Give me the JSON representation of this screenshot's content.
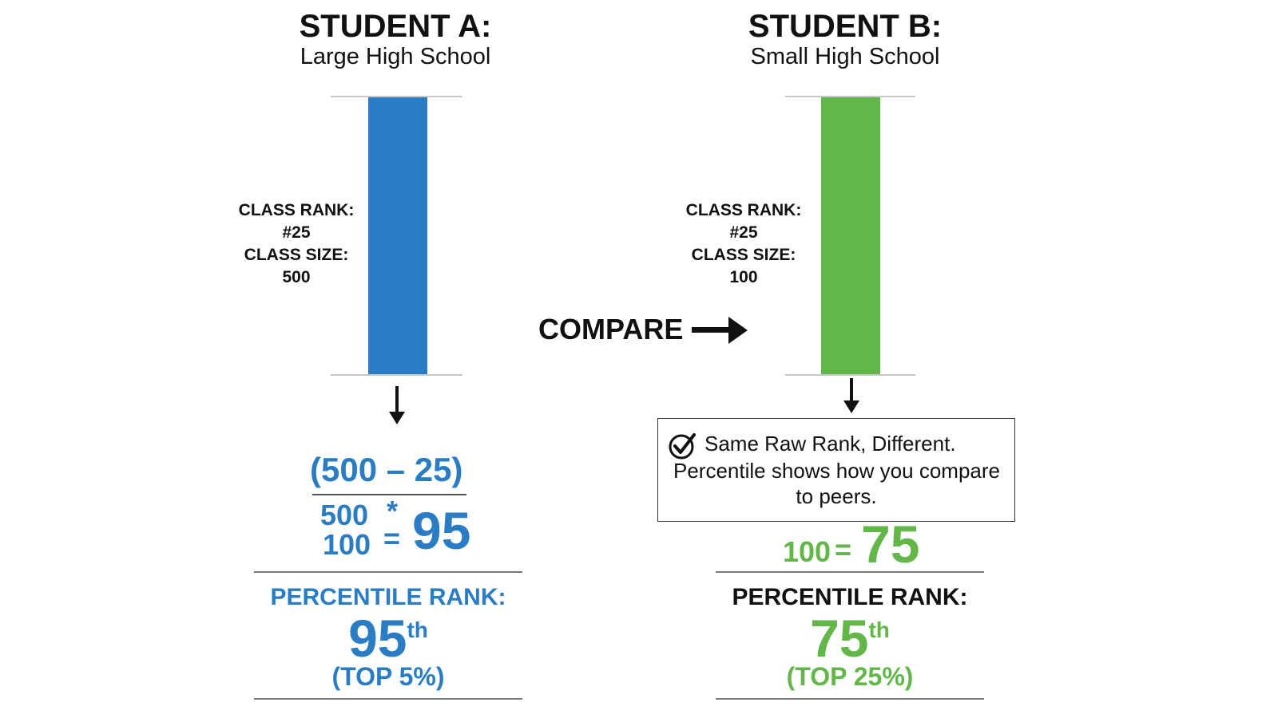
{
  "student_a": {
    "title": "STUDENT A:",
    "subtitle": "Large High School",
    "class_rank_label": "CLASS RANK:",
    "class_rank_value": "#25",
    "class_size_label": "CLASS SIZE:",
    "class_size_value": "500",
    "formula_numerator": "(500 – 25)",
    "formula_denominator": "500",
    "formula_star": "*",
    "formula_multiplier": "100",
    "formula_equals": "=",
    "formula_result": "95",
    "percentile_label": "PERCENTILE RANK:",
    "percentile_value": "95",
    "percentile_suffix": "th",
    "percentile_top": "(TOP 5%)",
    "color": "#2a7dc4"
  },
  "student_b": {
    "title": "STUDENT B:",
    "subtitle": "Small High School",
    "class_rank_label": "CLASS RANK:",
    "class_rank_value": "#25",
    "class_size_label": "CLASS SIZE:",
    "class_size_value": "100",
    "formula_multiplier": "100",
    "formula_equals": "=",
    "formula_result": "75",
    "percentile_label": "PERCENTILE RANK:",
    "percentile_value": "75",
    "percentile_suffix": "th",
    "percentile_top": "(TOP 25%)",
    "color": "#62b748"
  },
  "compare": {
    "label": "COMPARE"
  },
  "note": {
    "icon": "check-circle-icon",
    "line1": "Same Raw Rank, Different.",
    "line2": "Percentile shows how you compare",
    "line3": "to peers."
  }
}
